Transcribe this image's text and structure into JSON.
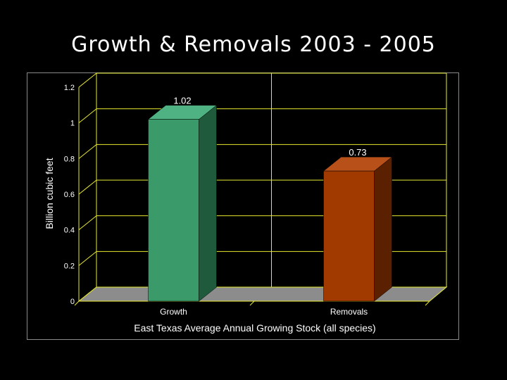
{
  "slide": {
    "title": "Growth & Removals 2003 - 2005"
  },
  "chart_data": {
    "type": "bar",
    "style": "3d-column",
    "categories": [
      "Growth",
      "Removals"
    ],
    "values": [
      1.02,
      0.73
    ],
    "data_labels": [
      "1.02",
      "0.73"
    ],
    "xlabel": "East Texas Average Annual Growing Stock (all species)",
    "ylabel": "Billion cubic feet",
    "ylim": [
      0,
      1.2
    ],
    "yticks": [
      0,
      0.2,
      0.4,
      0.6,
      0.8,
      1,
      1.2
    ],
    "ytick_labels": [
      "0",
      "0.2",
      "0.4",
      "0.6",
      "0.8",
      "1",
      "1.2"
    ],
    "grid": true,
    "legend": "none",
    "colors": {
      "background": "#000000",
      "gridlines": "#e8e830",
      "floor": "#8c8c8c",
      "bars_front": [
        "#3a9a6a",
        "#a03a00"
      ],
      "bars_side": [
        "#1f5a3c",
        "#5a2000"
      ],
      "bars_top": [
        "#4fb283",
        "#b8501a"
      ]
    }
  }
}
